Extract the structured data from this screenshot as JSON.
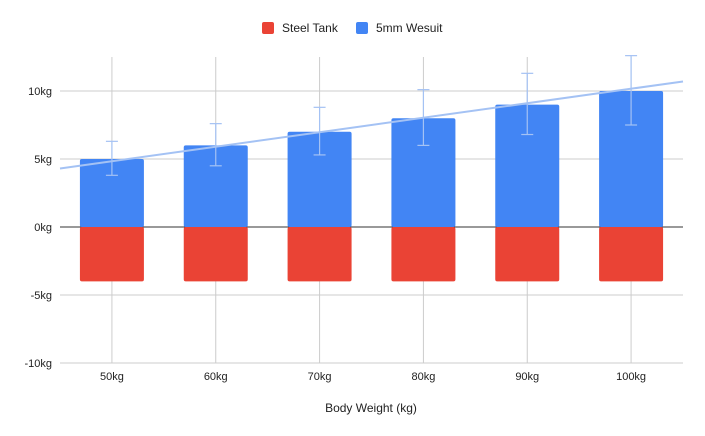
{
  "chart_data": {
    "type": "bar",
    "stacked": true,
    "categories": [
      "50kg",
      "60kg",
      "70kg",
      "80kg",
      "90kg",
      "100kg"
    ],
    "series": [
      {
        "name": "Steel Tank",
        "color": "#ea4335",
        "values": [
          -4,
          -4,
          -4,
          -4,
          -4,
          -4
        ]
      },
      {
        "name": "5mm Wesuit",
        "color": "#4285f4",
        "values": [
          5,
          6,
          7,
          8,
          9,
          10
        ],
        "error_bars": [
          [
            3.8,
            6.3
          ],
          [
            4.5,
            7.6
          ],
          [
            5.3,
            8.8
          ],
          [
            6.0,
            10.1
          ],
          [
            6.8,
            11.3
          ],
          [
            7.5,
            12.6
          ]
        ]
      }
    ],
    "trendline": {
      "series": "5mm Wesuit",
      "color": "#a4c2f4",
      "start_value": 4.3,
      "end_value": 10.7
    },
    "xlabel": "Body Weight (kg)",
    "ylabel": "",
    "ylim": [
      -10,
      12.5
    ],
    "yticks": [
      -10,
      -5,
      0,
      5,
      10
    ],
    "ytick_labels": [
      "-10kg",
      "-5kg",
      "0kg",
      "5kg",
      "10kg"
    ],
    "grid": true,
    "legend": "top-center"
  }
}
